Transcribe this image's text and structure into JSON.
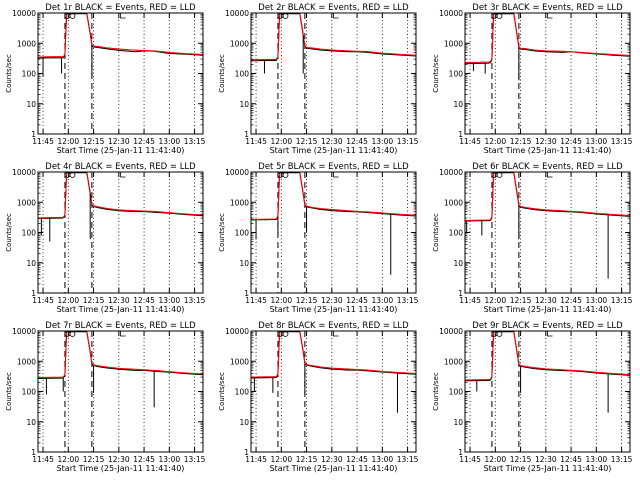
{
  "chart_data": {
    "type": "line",
    "layout": "3x3 grid",
    "xlabel": "Start Time (25-Jan-11 11:41:40)",
    "ylabel": "Counts/sec",
    "y_scale": "log",
    "ylim": [
      1,
      10000
    ],
    "y_ticks": [
      "1",
      "10",
      "100",
      "1000",
      "10000"
    ],
    "x_ticks": [
      "11:45",
      "12:00",
      "12:15",
      "12:30",
      "12:45",
      "13:00",
      "13:15"
    ],
    "x_tick_minutes": [
      0,
      15,
      30,
      45,
      60,
      75,
      90
    ],
    "xlim_minutes": [
      -3,
      95
    ],
    "x_axis_note": "minutes after 11:45",
    "dotted_lines_minutes": [
      0,
      15,
      30,
      45,
      60,
      75,
      90
    ],
    "dashed_lines_minutes": [
      13,
      29
    ],
    "colors": {
      "events": "#000000",
      "lld": "#ff0000"
    },
    "panels": [
      {
        "title": "Det 1r BLACK = Events, RED = LLD",
        "x_minutes": [
          -3,
          0,
          6,
          11,
          12,
          13,
          14,
          26,
          28,
          29,
          30,
          33,
          38,
          45,
          55,
          60,
          66,
          75,
          85,
          95
        ],
        "lld": [
          350,
          355,
          360,
          358,
          356,
          420,
          10000,
          10000,
          2200,
          900,
          800,
          780,
          700,
          640,
          590,
          570,
          560,
          500,
          450,
          420
        ],
        "events": [
          320,
          325,
          330,
          328,
          330,
          400,
          9500,
          9500,
          2000,
          850,
          750,
          720,
          650,
          580,
          520,
          560,
          540,
          460,
          430,
          400
        ],
        "dips": [
          [
            0,
            80
          ],
          [
            11,
            100
          ],
          [
            29,
            80
          ]
        ]
      },
      {
        "title": "Det 2r BLACK = Events, RED = LLD",
        "x_minutes": [
          -3,
          0,
          6,
          11,
          12,
          13,
          14,
          26,
          28,
          29,
          30,
          33,
          38,
          45,
          55,
          60,
          66,
          75,
          85,
          95
        ],
        "lld": [
          280,
          285,
          290,
          288,
          290,
          350,
          10000,
          10000,
          2000,
          800,
          720,
          700,
          640,
          600,
          560,
          540,
          530,
          470,
          430,
          400
        ],
        "events": [
          260,
          265,
          270,
          268,
          270,
          330,
          9500,
          9500,
          1800,
          760,
          680,
          650,
          600,
          560,
          520,
          520,
          500,
          440,
          410,
          380
        ],
        "dips": [
          [
            5,
            100
          ],
          [
            28,
            100
          ]
        ]
      },
      {
        "title": "Det 3r BLACK = Events, RED = LLD",
        "x_minutes": [
          -3,
          0,
          6,
          11,
          12,
          13,
          14,
          26,
          28,
          29,
          30,
          33,
          38,
          45,
          55,
          60,
          66,
          75,
          85,
          95
        ],
        "lld": [
          230,
          232,
          235,
          240,
          245,
          300,
          10000,
          10000,
          1800,
          750,
          680,
          660,
          600,
          560,
          540,
          520,
          500,
          460,
          420,
          390
        ],
        "events": [
          210,
          212,
          215,
          220,
          225,
          280,
          9500,
          9500,
          1700,
          700,
          640,
          620,
          560,
          520,
          500,
          520,
          480,
          440,
          400,
          370
        ],
        "dips": [
          [
            2,
            120
          ],
          [
            9,
            100
          ],
          [
            29,
            60
          ]
        ]
      },
      {
        "title": "Det 4r BLACK = Events, RED = LLD",
        "x_minutes": [
          -3,
          0,
          6,
          11,
          12,
          13,
          14,
          26,
          28,
          29,
          30,
          33,
          38,
          45,
          55,
          60,
          66,
          75,
          85,
          95
        ],
        "lld": [
          300,
          305,
          310,
          315,
          318,
          380,
          10000,
          10000,
          2100,
          850,
          760,
          700,
          620,
          560,
          520,
          510,
          500,
          450,
          410,
          380
        ],
        "events": [
          290,
          292,
          295,
          300,
          305,
          360,
          9500,
          9500,
          1900,
          800,
          720,
          660,
          580,
          520,
          490,
          490,
          470,
          430,
          390,
          360
        ],
        "dips": [
          [
            -1,
            80
          ],
          [
            4,
            50
          ],
          [
            28,
            60
          ]
        ]
      },
      {
        "title": "Det 5r BLACK = Events, RED = LLD",
        "x_minutes": [
          -3,
          0,
          6,
          11,
          12,
          13,
          14,
          26,
          28,
          29,
          30,
          33,
          38,
          45,
          55,
          60,
          66,
          75,
          85,
          95
        ],
        "lld": [
          270,
          272,
          275,
          280,
          282,
          340,
          10000,
          10000,
          2000,
          820,
          740,
          680,
          620,
          570,
          520,
          500,
          480,
          440,
          400,
          370
        ],
        "events": [
          260,
          262,
          265,
          268,
          270,
          320,
          9500,
          9500,
          1850,
          780,
          700,
          650,
          580,
          530,
          490,
          480,
          460,
          420,
          380,
          350
        ],
        "dips": [
          [
            0,
            60
          ],
          [
            13,
            80
          ],
          [
            30,
            100
          ],
          [
            80,
            4
          ]
        ]
      },
      {
        "title": "Det 6r BLACK = Events, RED = LLD",
        "x_minutes": [
          -3,
          0,
          6,
          11,
          12,
          13,
          14,
          26,
          28,
          29,
          30,
          33,
          38,
          45,
          55,
          60,
          66,
          75,
          85,
          95
        ],
        "lld": [
          250,
          252,
          255,
          258,
          260,
          320,
          10000,
          10000,
          1900,
          800,
          720,
          670,
          610,
          560,
          520,
          500,
          480,
          430,
          390,
          360
        ],
        "events": [
          240,
          242,
          245,
          248,
          250,
          300,
          9500,
          9500,
          1750,
          760,
          680,
          630,
          570,
          520,
          490,
          480,
          460,
          410,
          370,
          340
        ],
        "dips": [
          [
            -2,
            100
          ],
          [
            7,
            80
          ],
          [
            29,
            60
          ],
          [
            82,
            3
          ]
        ]
      },
      {
        "title": "Det 7r BLACK = Events, RED = LLD",
        "x_minutes": [
          -3,
          0,
          6,
          11,
          12,
          13,
          14,
          26,
          28,
          29,
          30,
          33,
          38,
          45,
          55,
          60,
          66,
          75,
          85,
          95
        ],
        "lld": [
          290,
          292,
          295,
          298,
          300,
          360,
          10000,
          10000,
          2100,
          860,
          760,
          700,
          640,
          580,
          540,
          520,
          500,
          450,
          410,
          380
        ],
        "events": [
          270,
          272,
          275,
          278,
          280,
          340,
          9500,
          9500,
          1950,
          800,
          720,
          660,
          600,
          540,
          500,
          500,
          470,
          430,
          390,
          360
        ],
        "dips": [
          [
            2,
            80
          ],
          [
            12,
            100
          ],
          [
            30,
            90
          ],
          [
            66,
            30
          ]
        ]
      },
      {
        "title": "Det 8r BLACK = Events, RED = LLD",
        "x_minutes": [
          -3,
          0,
          6,
          11,
          12,
          13,
          14,
          26,
          28,
          29,
          30,
          33,
          38,
          45,
          55,
          60,
          66,
          75,
          85,
          95
        ],
        "lld": [
          300,
          302,
          305,
          308,
          310,
          370,
          10000,
          10000,
          2150,
          870,
          780,
          720,
          650,
          590,
          550,
          530,
          510,
          460,
          420,
          390
        ],
        "events": [
          280,
          282,
          285,
          288,
          290,
          350,
          9500,
          9500,
          2000,
          820,
          740,
          680,
          610,
          550,
          510,
          510,
          480,
          440,
          400,
          370
        ],
        "dips": [
          [
            -1,
            100
          ],
          [
            10,
            90
          ],
          [
            29,
            80
          ],
          [
            84,
            20
          ]
        ]
      },
      {
        "title": "Det 9r BLACK = Events, RED = LLD",
        "x_minutes": [
          -3,
          0,
          6,
          11,
          12,
          13,
          14,
          26,
          28,
          29,
          30,
          33,
          38,
          45,
          55,
          60,
          66,
          75,
          85,
          95
        ],
        "lld": [
          240,
          242,
          245,
          248,
          250,
          310,
          10000,
          10000,
          1900,
          790,
          720,
          670,
          610,
          560,
          520,
          500,
          480,
          430,
          390,
          360
        ],
        "events": [
          225,
          228,
          230,
          232,
          235,
          290,
          9500,
          9500,
          1750,
          750,
          680,
          630,
          570,
          520,
          490,
          480,
          460,
          410,
          370,
          340
        ],
        "dips": [
          [
            4,
            100
          ],
          [
            30,
            90
          ],
          [
            82,
            20
          ]
        ]
      }
    ]
  }
}
